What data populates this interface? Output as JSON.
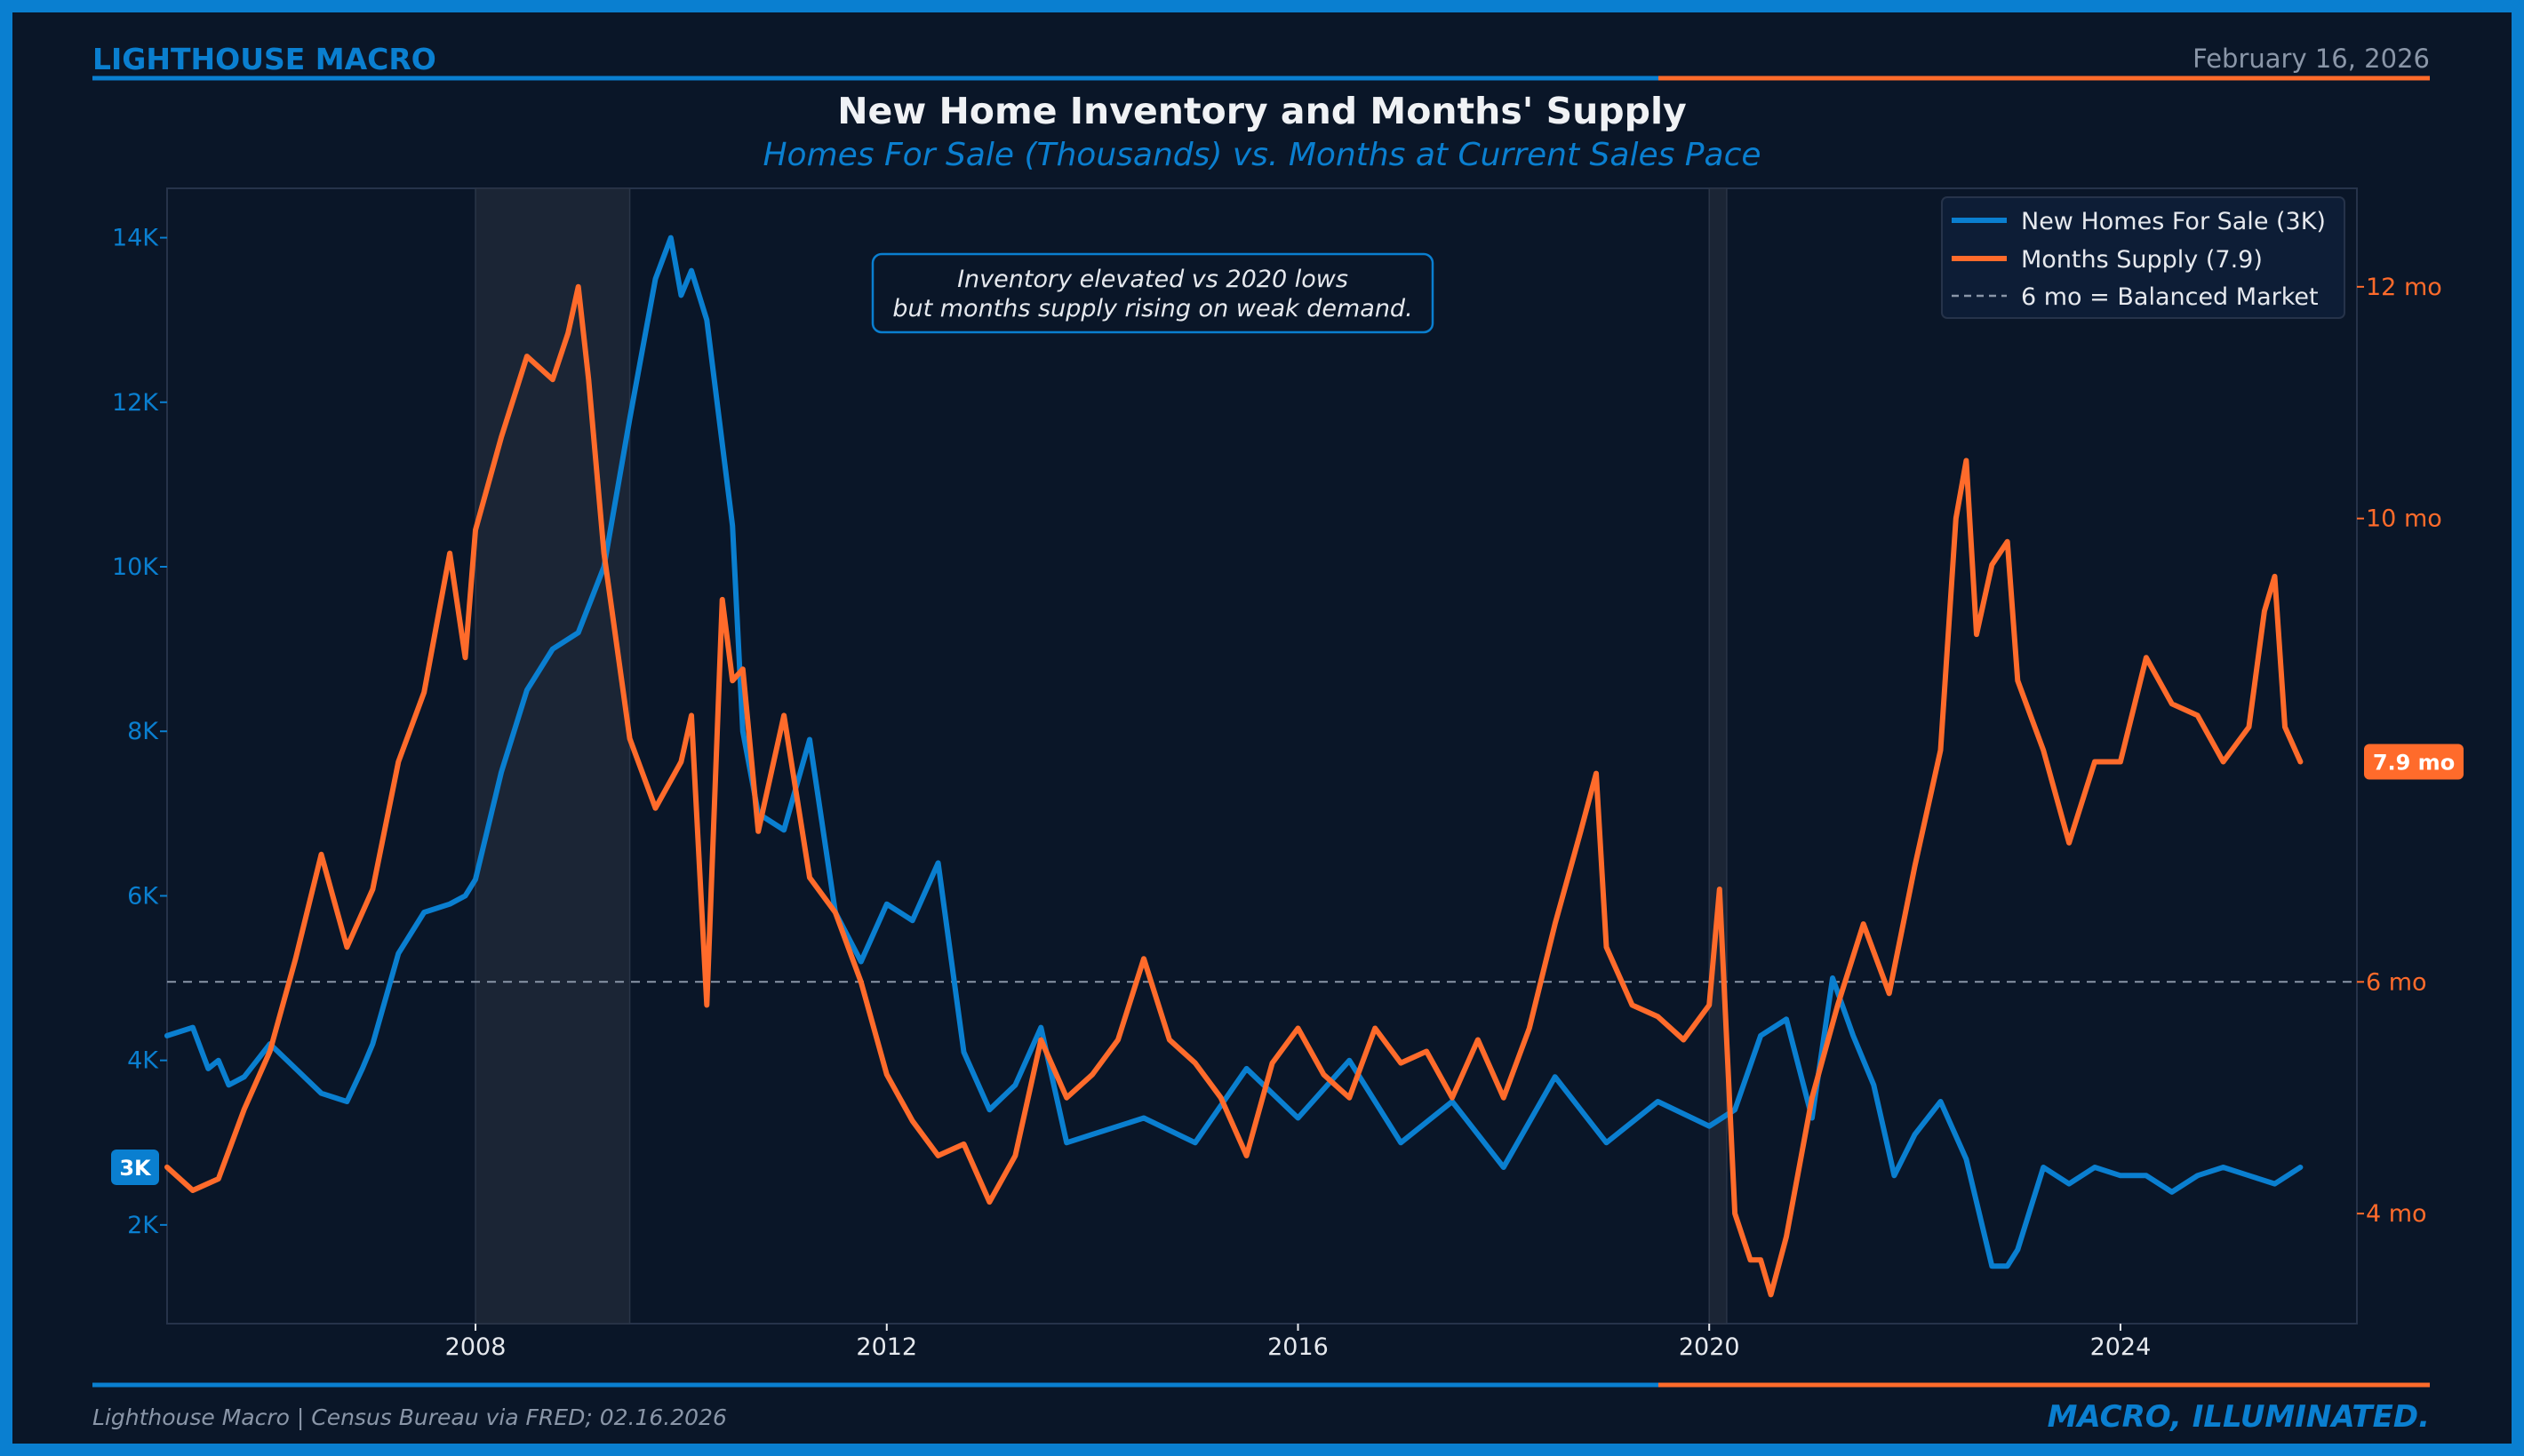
{
  "header": {
    "brand": "LIGHTHOUSE MACRO",
    "date": "February 16, 2026"
  },
  "footer": {
    "source": "Lighthouse Macro | Census Bureau via FRED; 02.16.2026",
    "tagline": "MACRO, ILLUMINATED."
  },
  "colors": {
    "background": "#0a1628",
    "blue": "#0a7fd0",
    "orange": "#ff6b2b",
    "grey": "#8a96a8"
  },
  "chart_data": {
    "type": "line",
    "title": "New Home Inventory and Months' Supply",
    "subtitle": "Homes For Sale (Thousands) vs. Months at Current Sales Pace",
    "x_range": [
      2005.0,
      2026.3
    ],
    "x_ticks": [
      {
        "value": 2008,
        "label": "2008"
      },
      {
        "value": 2012,
        "label": "2012"
      },
      {
        "value": 2016,
        "label": "2016"
      },
      {
        "value": 2020,
        "label": "2020"
      },
      {
        "value": 2024,
        "label": "2024"
      }
    ],
    "y_left": {
      "range": [
        800,
        14600
      ],
      "ticks": [
        {
          "value": 2000,
          "label": "2K"
        },
        {
          "value": 4000,
          "label": "4K"
        },
        {
          "value": 6000,
          "label": "6K"
        },
        {
          "value": 8000,
          "label": "8K"
        },
        {
          "value": 10000,
          "label": "10K"
        },
        {
          "value": 12000,
          "label": "12K"
        },
        {
          "value": 14000,
          "label": "14K"
        }
      ]
    },
    "y_right": {
      "range": [
        3.05,
        12.85
      ],
      "ticks": [
        {
          "value": 4,
          "label": "4 mo"
        },
        {
          "value": 6,
          "label": "6 mo"
        },
        {
          "value": 10,
          "label": "10 mo"
        },
        {
          "value": 12,
          "label": "12 mo"
        }
      ]
    },
    "recessions": [
      {
        "start": 2008.0,
        "end": 2009.5
      },
      {
        "start": 2020.0,
        "end": 2020.17
      }
    ],
    "reference_line": {
      "axis": "right",
      "value": 6.0
    },
    "annotation": {
      "line1": "Inventory elevated vs 2020 lows",
      "line2": "but months supply rising on weak demand."
    },
    "legend": [
      {
        "label": "New Homes For Sale (3K)",
        "color": "#0a7fd0",
        "style": "solid"
      },
      {
        "label": "Months Supply (7.9)",
        "color": "#ff6b2b",
        "style": "solid"
      },
      {
        "label": "6 mo = Balanced Market",
        "color": "#8a96a8",
        "style": "dashed"
      }
    ],
    "end_labels": {
      "left": {
        "value": 2700,
        "label": "3K"
      },
      "right": {
        "value": 7.9,
        "label": "7.9 mo"
      }
    },
    "series": [
      {
        "name": "New Homes For Sale",
        "axis": "left",
        "color": "#0a7fd0",
        "x": [
          2005.0,
          2005.25,
          2005.4,
          2005.5,
          2005.6,
          2005.75,
          2006.0,
          2006.25,
          2006.5,
          2006.75,
          2006.9,
          2007.0,
          2007.25,
          2007.5,
          2007.75,
          2007.9,
          2008.0,
          2008.25,
          2008.5,
          2008.75,
          2009.0,
          2009.25,
          2009.5,
          2009.75,
          2009.9,
          2010.0,
          2010.1,
          2010.25,
          2010.5,
          2010.6,
          2010.75,
          2011.0,
          2011.25,
          2011.5,
          2011.75,
          2012.0,
          2012.25,
          2012.5,
          2012.75,
          2013.0,
          2013.25,
          2013.5,
          2013.75,
          2014.0,
          2014.5,
          2015.0,
          2015.5,
          2016.0,
          2016.5,
          2017.0,
          2017.5,
          2018.0,
          2018.5,
          2019.0,
          2019.5,
          2020.0,
          2020.25,
          2020.5,
          2020.75,
          2021.0,
          2021.2,
          2021.4,
          2021.6,
          2021.8,
          2022.0,
          2022.25,
          2022.5,
          2022.75,
          2022.9,
          2023.0,
          2023.25,
          2023.5,
          2023.75,
          2024.0,
          2024.25,
          2024.5,
          2024.75,
          2025.0,
          2025.25,
          2025.5,
          2025.75
        ],
        "y": [
          4300,
          4400,
          3900,
          4000,
          3700,
          3800,
          4200,
          3900,
          3600,
          3500,
          3900,
          4200,
          5300,
          5800,
          5900,
          6000,
          6200,
          7500,
          8500,
          9000,
          9200,
          10000,
          11800,
          13500,
          14000,
          13300,
          13600,
          13000,
          10500,
          8000,
          7000,
          6800,
          7900,
          5800,
          5200,
          5900,
          5700,
          6400,
          4100,
          3400,
          3700,
          4400,
          3000,
          3100,
          3300,
          3000,
          3900,
          3300,
          4000,
          3000,
          3500,
          2700,
          3800,
          3000,
          3500,
          3200,
          3400,
          4300,
          4500,
          3300,
          5000,
          4300,
          3700,
          2600,
          3100,
          3500,
          2800,
          1500,
          1500,
          1700,
          2700,
          2500,
          2700,
          2600,
          2600,
          2400,
          2600,
          2700,
          2600,
          2500,
          2700
        ]
      },
      {
        "name": "Months Supply",
        "axis": "right",
        "color": "#ff6b2b",
        "x": [
          2005.0,
          2005.25,
          2005.5,
          2005.75,
          2006.0,
          2006.25,
          2006.5,
          2006.75,
          2007.0,
          2007.25,
          2007.5,
          2007.75,
          2007.9,
          2008.0,
          2008.25,
          2008.5,
          2008.75,
          2008.9,
          2009.0,
          2009.1,
          2009.25,
          2009.5,
          2009.75,
          2010.0,
          2010.1,
          2010.25,
          2010.4,
          2010.5,
          2010.6,
          2010.75,
          2011.0,
          2011.25,
          2011.5,
          2011.75,
          2012.0,
          2012.25,
          2012.5,
          2012.75,
          2013.0,
          2013.25,
          2013.5,
          2013.75,
          2014.0,
          2014.25,
          2014.5,
          2014.75,
          2015.0,
          2015.25,
          2015.5,
          2015.75,
          2016.0,
          2016.25,
          2016.5,
          2016.75,
          2017.0,
          2017.25,
          2017.5,
          2017.75,
          2018.0,
          2018.25,
          2018.5,
          2018.75,
          2018.9,
          2019.0,
          2019.25,
          2019.5,
          2019.75,
          2020.0,
          2020.1,
          2020.25,
          2020.4,
          2020.5,
          2020.6,
          2020.75,
          2021.0,
          2021.25,
          2021.5,
          2021.75,
          2022.0,
          2022.25,
          2022.4,
          2022.5,
          2022.6,
          2022.75,
          2022.9,
          2023.0,
          2023.25,
          2023.5,
          2023.75,
          2024.0,
          2024.25,
          2024.5,
          2024.75,
          2025.0,
          2025.25,
          2025.4,
          2025.5,
          2025.6,
          2025.75
        ],
        "y": [
          4.4,
          4.2,
          4.3,
          4.9,
          5.4,
          6.2,
          7.1,
          6.3,
          6.8,
          7.9,
          8.5,
          9.7,
          8.8,
          9.9,
          10.7,
          11.4,
          11.2,
          11.6,
          12.0,
          11.2,
          9.7,
          8.1,
          7.5,
          7.9,
          8.3,
          5.8,
          9.3,
          8.6,
          8.7,
          7.3,
          8.3,
          6.9,
          6.6,
          6.0,
          5.2,
          4.8,
          4.5,
          4.6,
          4.1,
          4.5,
          5.5,
          5.0,
          5.2,
          5.5,
          6.2,
          5.5,
          5.3,
          5.0,
          4.5,
          5.3,
          5.6,
          5.2,
          5.0,
          5.6,
          5.3,
          5.4,
          5.0,
          5.5,
          5.0,
          5.6,
          6.5,
          7.3,
          7.8,
          6.3,
          5.8,
          5.7,
          5.5,
          5.8,
          6.8,
          4.0,
          3.6,
          3.6,
          3.3,
          3.8,
          5.0,
          5.8,
          6.5,
          5.9,
          7.0,
          8.0,
          10.0,
          10.5,
          9.0,
          9.6,
          9.8,
          8.6,
          8.0,
          7.2,
          7.9,
          7.9,
          8.8,
          8.4,
          8.3,
          7.9,
          8.2,
          9.2,
          9.5,
          8.2,
          7.9
        ]
      }
    ]
  }
}
